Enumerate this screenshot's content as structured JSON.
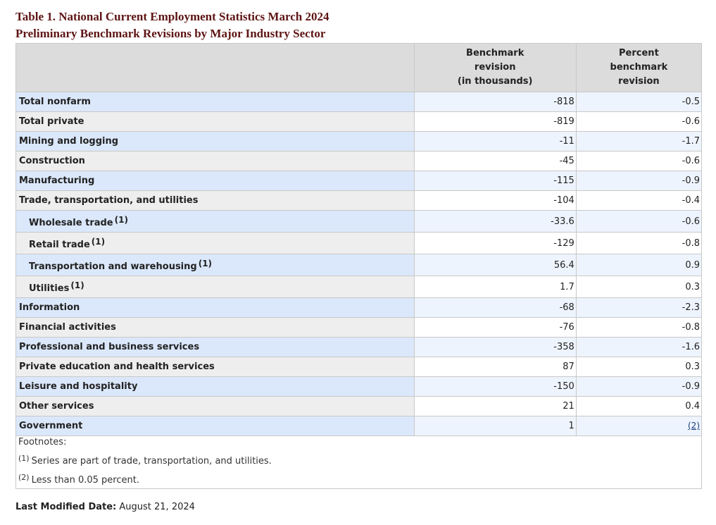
{
  "title": {
    "line1": "Table 1. National Current Employment Statistics March 2024",
    "line2": "Preliminary Benchmark Revisions by Major Industry Sector"
  },
  "headers": {
    "benchmark": [
      "Benchmark",
      "revision",
      "(in thousands)"
    ],
    "percent": [
      "Percent",
      "benchmark",
      "revision"
    ]
  },
  "rows": [
    {
      "label": "Total nonfarm",
      "benchmark": "-818",
      "percent": "-0.5"
    },
    {
      "label": "Total private",
      "benchmark": "-819",
      "percent": "-0.6"
    },
    {
      "label": "Mining and logging",
      "benchmark": "-11",
      "percent": "-1.7"
    },
    {
      "label": "Construction",
      "benchmark": "-45",
      "percent": "-0.6"
    },
    {
      "label": "Manufacturing",
      "benchmark": "-115",
      "percent": "-0.9"
    },
    {
      "label": "Trade, transportation, and utilities",
      "benchmark": "-104",
      "percent": "-0.4"
    },
    {
      "label": "Wholesale trade",
      "note": "(1)",
      "benchmark": "-33.6",
      "percent": "-0.6"
    },
    {
      "label": "Retail trade",
      "note": "(1)",
      "benchmark": "-129",
      "percent": "-0.8"
    },
    {
      "label": "Transportation and warehousing",
      "note": "(1)",
      "benchmark": "56.4",
      "percent": "0.9"
    },
    {
      "label": "Utilities",
      "note": "(1)",
      "benchmark": "1.7",
      "percent": "0.3"
    },
    {
      "label": "Information",
      "benchmark": "-68",
      "percent": "-2.3"
    },
    {
      "label": "Financial activities",
      "benchmark": "-76",
      "percent": "-0.8"
    },
    {
      "label": "Professional and business services",
      "benchmark": "-358",
      "percent": "-1.6"
    },
    {
      "label": "Private education and health services",
      "benchmark": "87",
      "percent": "0.3"
    },
    {
      "label": "Leisure and hospitality",
      "benchmark": "-150",
      "percent": "-0.9"
    },
    {
      "label": "Other services",
      "benchmark": "21",
      "percent": "0.4"
    },
    {
      "label": "Government",
      "benchmark": "1",
      "percent_link": "(2)"
    }
  ],
  "footnotes": {
    "title": "Footnotes:",
    "items": [
      {
        "mark": "(1)",
        "text": "Series are part of trade, transportation, and utilities."
      },
      {
        "mark": "(2)",
        "text": "Less than 0.05 percent."
      }
    ]
  },
  "last_modified": {
    "label": "Last Modified Date:",
    "value": "August 21, 2024"
  }
}
